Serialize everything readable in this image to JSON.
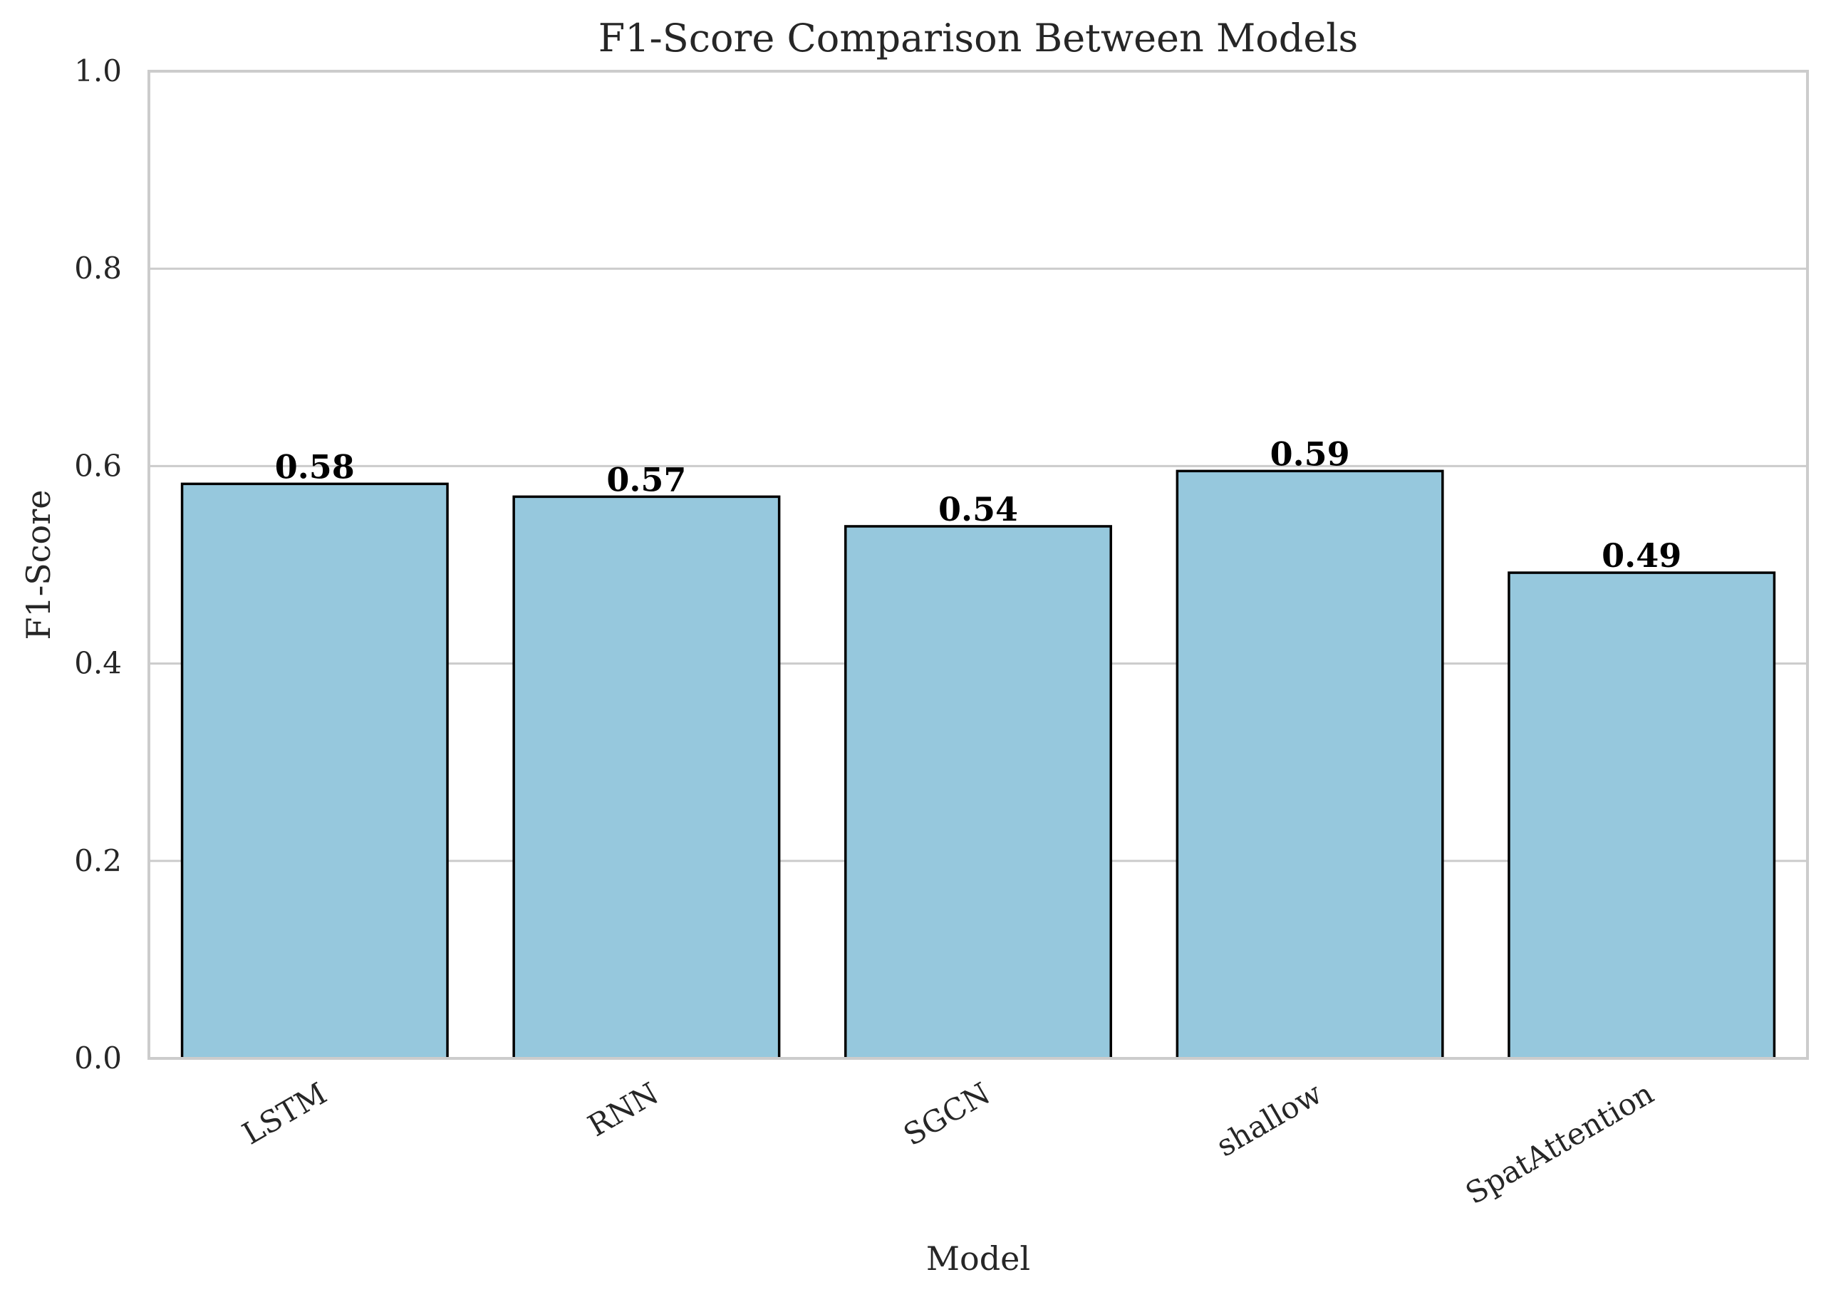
{
  "chart_data": {
    "type": "bar",
    "title": "F1-Score Comparison Between Models",
    "xlabel": "Model",
    "ylabel": "F1-Score",
    "categories": [
      "LSTM",
      "RNN",
      "SGCN",
      "shallow",
      "SpatAttention"
    ],
    "values": [
      0.582,
      0.569,
      0.539,
      0.595,
      0.492
    ],
    "data_labels": [
      "0.58",
      "0.57",
      "0.54",
      "0.59",
      "0.49"
    ],
    "ylim": [
      0,
      1.0
    ],
    "yticks": [
      0.0,
      0.2,
      0.4,
      0.6,
      0.8,
      1.0
    ],
    "ytick_labels": [
      "0.0",
      "0.2",
      "0.4",
      "0.6",
      "0.8",
      "1.0"
    ],
    "grid": "horizontal",
    "bar_color": "#96c8dd",
    "edge_color": "#000000"
  }
}
